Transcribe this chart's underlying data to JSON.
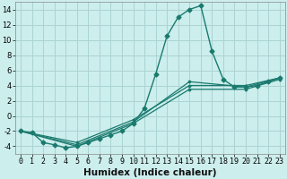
{
  "xlabel": "Humidex (Indice chaleur)",
  "ylabel": "",
  "background_color": "#cceeed",
  "grid_color": "#aad4d2",
  "line_color": "#1a7a6e",
  "xlim": [
    -0.5,
    23.5
  ],
  "ylim": [
    -5,
    15
  ],
  "xticks": [
    0,
    1,
    2,
    3,
    4,
    5,
    6,
    7,
    8,
    9,
    10,
    11,
    12,
    13,
    14,
    15,
    16,
    17,
    18,
    19,
    20,
    21,
    22,
    23
  ],
  "yticks": [
    -4,
    -2,
    0,
    2,
    4,
    6,
    8,
    10,
    12,
    14
  ],
  "series1_x": [
    0,
    1,
    2,
    3,
    4,
    5,
    6,
    7,
    8,
    9,
    10,
    11,
    12,
    13,
    14,
    15,
    16,
    17,
    18,
    19,
    20,
    21,
    22,
    23
  ],
  "series1_y": [
    -2,
    -2.2,
    -3.5,
    -3.8,
    -4.2,
    -4.0,
    -3.5,
    -3.0,
    -2.5,
    -2.0,
    -1.0,
    1.0,
    5.5,
    10.5,
    13.0,
    14.0,
    14.5,
    8.5,
    4.8,
    3.8,
    3.8,
    4.0,
    4.5,
    5.0
  ],
  "series2_x": [
    0,
    5,
    10,
    15,
    20,
    23
  ],
  "series2_y": [
    -2,
    -3.8,
    -0.8,
    4.5,
    3.8,
    5.0
  ],
  "series3_x": [
    0,
    5,
    10,
    15,
    20,
    23
  ],
  "series3_y": [
    -2,
    -3.5,
    -0.5,
    4.0,
    4.0,
    5.0
  ],
  "series4_x": [
    0,
    5,
    10,
    15,
    20,
    23
  ],
  "series4_y": [
    -2,
    -4.0,
    -1.0,
    3.5,
    3.5,
    4.8
  ],
  "xlabel_fontsize": 7.5,
  "tick_fontsize": 6.0,
  "linewidth": 1.0,
  "marker_size": 2.5
}
